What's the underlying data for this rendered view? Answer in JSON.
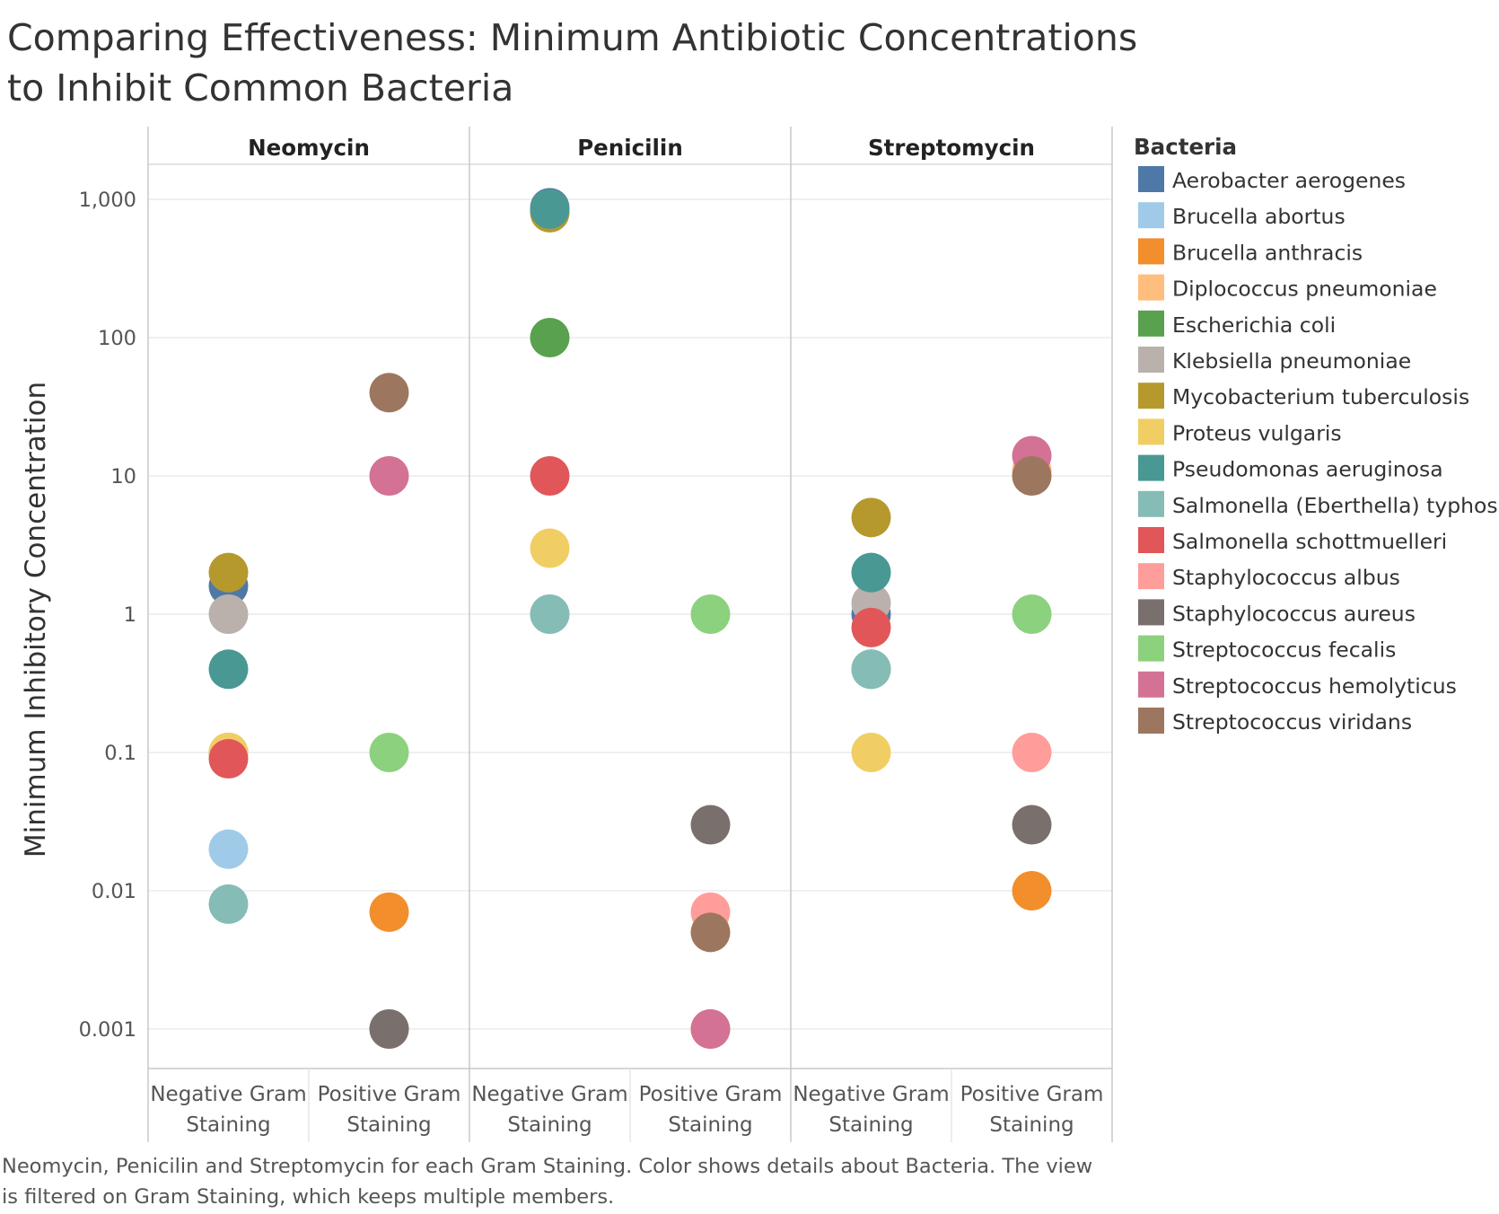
{
  "chart_data": {
    "type": "scatter",
    "title": "Comparing Effectiveness: Minimum Antibiotic Concentrations to Inhibit Common Bacteria",
    "ylabel": "Minimum Inhibitory Concentration",
    "yscale": "log",
    "ylim": [
      0.0006,
      2000
    ],
    "yticks": [
      {
        "value": 1000,
        "label": "1,000"
      },
      {
        "value": 100,
        "label": "100"
      },
      {
        "value": 10,
        "label": "10"
      },
      {
        "value": 1,
        "label": "1"
      },
      {
        "value": 0.1,
        "label": "0.1"
      },
      {
        "value": 0.01,
        "label": "0.01"
      },
      {
        "value": 0.001,
        "label": "0.001"
      }
    ],
    "panels": [
      "Neomycin",
      "Penicilin",
      "Streptomycin"
    ],
    "categories": [
      "Negative Gram Staining",
      "Positive Gram Staining"
    ],
    "category_lines": [
      [
        "Negative Gram",
        "Staining"
      ],
      [
        "Positive Gram",
        "Staining"
      ]
    ],
    "grid": true,
    "legend_title": "Bacteria",
    "legend_position": "right",
    "series": [
      {
        "name": "Aerobacter aerogenes",
        "color": "#4e79a7",
        "points": [
          [
            "Neomycin",
            "Negative Gram Staining",
            1.6
          ],
          [
            "Penicilin",
            "Negative Gram Staining",
            870
          ],
          [
            "Streptomycin",
            "Negative Gram Staining",
            1.0
          ]
        ]
      },
      {
        "name": "Brucella abortus",
        "color": "#a0cbe8",
        "points": [
          [
            "Neomycin",
            "Negative Gram Staining",
            0.02
          ],
          [
            "Penicilin",
            "Negative Gram Staining",
            1
          ],
          [
            "Streptomycin",
            "Negative Gram Staining",
            2
          ]
        ]
      },
      {
        "name": "Brucella anthracis",
        "color": "#f28e2b",
        "points": [
          [
            "Neomycin",
            "Positive Gram Staining",
            0.007
          ],
          [
            "Penicilin",
            "Positive Gram Staining",
            0.001
          ],
          [
            "Streptomycin",
            "Positive Gram Staining",
            0.01
          ]
        ]
      },
      {
        "name": "Diplococcus pneumoniae",
        "color": "#ffbe7d",
        "points": [
          [
            "Neomycin",
            "Positive Gram Staining",
            10
          ],
          [
            "Penicilin",
            "Positive Gram Staining",
            0.005
          ],
          [
            "Streptomycin",
            "Positive Gram Staining",
            11
          ]
        ]
      },
      {
        "name": "Escherichia coli",
        "color": "#59a14f",
        "points": [
          [
            "Neomycin",
            "Negative Gram Staining",
            0.1
          ],
          [
            "Penicilin",
            "Negative Gram Staining",
            100
          ],
          [
            "Streptomycin",
            "Negative Gram Staining",
            0.4
          ]
        ]
      },
      {
        "name": "Klebsiella pneumoniae",
        "color": "#bab0ac",
        "points": [
          [
            "Neomycin",
            "Negative Gram Staining",
            1
          ],
          [
            "Penicilin",
            "Negative Gram Staining",
            850
          ],
          [
            "Streptomycin",
            "Negative Gram Staining",
            1.2
          ]
        ]
      },
      {
        "name": "Mycobacterium tuberculosis",
        "color": "#b6992d",
        "points": [
          [
            "Neomycin",
            "Negative Gram Staining",
            2
          ],
          [
            "Penicilin",
            "Negative Gram Staining",
            800
          ],
          [
            "Streptomycin",
            "Negative Gram Staining",
            5
          ]
        ]
      },
      {
        "name": "Proteus vulgaris",
        "color": "#f1ce63",
        "points": [
          [
            "Neomycin",
            "Negative Gram Staining",
            0.1
          ],
          [
            "Penicilin",
            "Negative Gram Staining",
            3
          ],
          [
            "Streptomycin",
            "Negative Gram Staining",
            0.1
          ]
        ]
      },
      {
        "name": "Pseudomonas aeruginosa",
        "color": "#499894",
        "points": [
          [
            "Neomycin",
            "Negative Gram Staining",
            0.4
          ],
          [
            "Penicilin",
            "Negative Gram Staining",
            850
          ],
          [
            "Streptomycin",
            "Negative Gram Staining",
            2
          ]
        ]
      },
      {
        "name": "Salmonella (Eberthella) typhosa",
        "color": "#86bcb6",
        "points": [
          [
            "Neomycin",
            "Negative Gram Staining",
            0.008
          ],
          [
            "Penicilin",
            "Negative Gram Staining",
            1
          ],
          [
            "Streptomycin",
            "Negative Gram Staining",
            0.4
          ]
        ]
      },
      {
        "name": "Salmonella schottmuelleri",
        "color": "#e15759",
        "points": [
          [
            "Neomycin",
            "Negative Gram Staining",
            0.09
          ],
          [
            "Penicilin",
            "Negative Gram Staining",
            10
          ],
          [
            "Streptomycin",
            "Negative Gram Staining",
            0.8
          ]
        ]
      },
      {
        "name": "Staphylococcus albus",
        "color": "#ff9d9a",
        "points": [
          [
            "Neomycin",
            "Positive Gram Staining",
            0.001
          ],
          [
            "Penicilin",
            "Positive Gram Staining",
            0.007
          ],
          [
            "Streptomycin",
            "Positive Gram Staining",
            0.1
          ]
        ]
      },
      {
        "name": "Staphylococcus aureus",
        "color": "#79706e",
        "points": [
          [
            "Neomycin",
            "Positive Gram Staining",
            0.001
          ],
          [
            "Penicilin",
            "Positive Gram Staining",
            0.03
          ],
          [
            "Streptomycin",
            "Positive Gram Staining",
            0.03
          ]
        ]
      },
      {
        "name": "Streptococcus fecalis",
        "color": "#8cd17d",
        "points": [
          [
            "Neomycin",
            "Positive Gram Staining",
            0.1
          ],
          [
            "Penicilin",
            "Positive Gram Staining",
            1
          ],
          [
            "Streptomycin",
            "Positive Gram Staining",
            1
          ]
        ]
      },
      {
        "name": "Streptococcus hemolyticus",
        "color": "#d37295",
        "points": [
          [
            "Neomycin",
            "Positive Gram Staining",
            10
          ],
          [
            "Penicilin",
            "Positive Gram Staining",
            0.001
          ],
          [
            "Streptomycin",
            "Positive Gram Staining",
            14
          ]
        ]
      },
      {
        "name": "Streptococcus viridans",
        "color": "#9d7660",
        "points": [
          [
            "Neomycin",
            "Positive Gram Staining",
            40
          ],
          [
            "Penicilin",
            "Positive Gram Staining",
            0.005
          ],
          [
            "Streptomycin",
            "Positive Gram Staining",
            10
          ]
        ]
      }
    ]
  },
  "caption_lines": [
    "Neomycin, Penicilin and Streptomycin for each Gram Staining.  Color shows details about Bacteria. The view",
    "is filtered on Gram Staining, which keeps multiple members."
  ]
}
